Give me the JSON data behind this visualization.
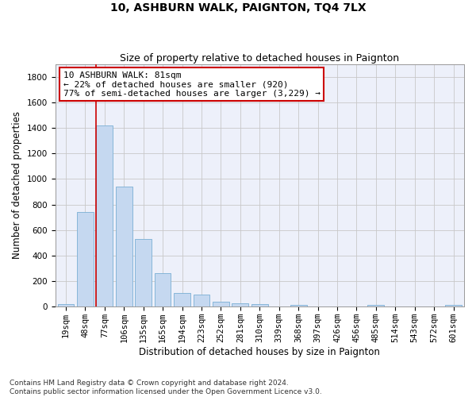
{
  "title": "10, ASHBURN WALK, PAIGNTON, TQ4 7LX",
  "subtitle": "Size of property relative to detached houses in Paignton",
  "xlabel": "Distribution of detached houses by size in Paignton",
  "ylabel": "Number of detached properties",
  "categories": [
    "19sqm",
    "48sqm",
    "77sqm",
    "106sqm",
    "135sqm",
    "165sqm",
    "194sqm",
    "223sqm",
    "252sqm",
    "281sqm",
    "310sqm",
    "339sqm",
    "368sqm",
    "397sqm",
    "426sqm",
    "456sqm",
    "485sqm",
    "514sqm",
    "543sqm",
    "572sqm",
    "601sqm"
  ],
  "values": [
    22,
    740,
    1420,
    940,
    530,
    265,
    105,
    93,
    40,
    27,
    20,
    5,
    15,
    5,
    3,
    3,
    13,
    3,
    3,
    3,
    12
  ],
  "bar_color": "#c5d8f0",
  "bar_edge_color": "#7aafd4",
  "red_line_index": 2,
  "annotation_text": "10 ASHBURN WALK: 81sqm\n← 22% of detached houses are smaller (920)\n77% of semi-detached houses are larger (3,229) →",
  "annotation_box_color": "#ffffff",
  "annotation_box_edge": "#cc0000",
  "ylim": [
    0,
    1900
  ],
  "yticks": [
    0,
    200,
    400,
    600,
    800,
    1000,
    1200,
    1400,
    1600,
    1800
  ],
  "bg_color": "#edf0fa",
  "grid_color": "#c8c8c8",
  "footer_text": "Contains HM Land Registry data © Crown copyright and database right 2024.\nContains public sector information licensed under the Open Government Licence v3.0.",
  "title_fontsize": 10,
  "subtitle_fontsize": 9,
  "xlabel_fontsize": 8.5,
  "ylabel_fontsize": 8.5,
  "tick_fontsize": 7.5,
  "annotation_fontsize": 8,
  "footer_fontsize": 6.5
}
